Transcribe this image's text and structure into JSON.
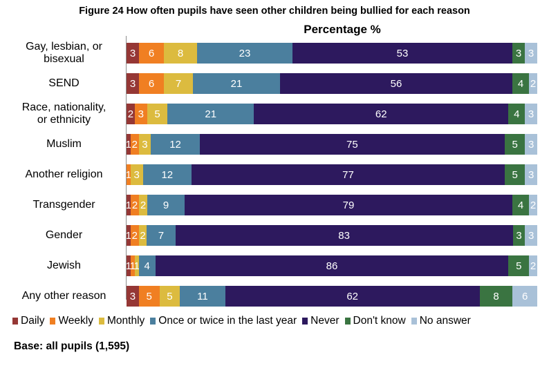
{
  "title": "Figure 24 How often pupils have seen other children being bullied for each reason",
  "subtitle": "Percentage %",
  "base_note": "Base: all pupils (1,595)",
  "colors": {
    "Daily": "#953735",
    "Weekly": "#f07f22",
    "Monthly": "#dcbb3f",
    "Once or twice in the last year": "#4b7f9e",
    "Never": "#2d195e",
    "Don't know": "#3a7441",
    "No answer": "#a9c1d8"
  },
  "chart_data": {
    "type": "bar",
    "orientation": "horizontal",
    "stacked": true,
    "title": "Figure 24 How often pupils have seen other children being bullied for each reason",
    "xlabel": "Percentage %",
    "categories": [
      [
        "Gay, lesbian, or",
        "bisexual"
      ],
      [
        "SEND"
      ],
      [
        "Race, nationality,",
        "or ethnicity"
      ],
      [
        "Muslim"
      ],
      [
        "Another religion"
      ],
      [
        "Transgender"
      ],
      [
        "Gender"
      ],
      [
        "Jewish"
      ],
      [
        "Any other reason"
      ]
    ],
    "series": [
      {
        "name": "Daily",
        "values": [
          3,
          3,
          2,
          1,
          0,
          1,
          1,
          1,
          3
        ]
      },
      {
        "name": "Weekly",
        "values": [
          6,
          6,
          3,
          2,
          1,
          2,
          2,
          1,
          5
        ]
      },
      {
        "name": "Monthly",
        "values": [
          8,
          7,
          5,
          3,
          3,
          2,
          2,
          1,
          5
        ]
      },
      {
        "name": "Once or twice in the last year",
        "values": [
          23,
          21,
          21,
          12,
          12,
          9,
          7,
          4,
          11
        ]
      },
      {
        "name": "Never",
        "values": [
          53,
          56,
          62,
          75,
          77,
          79,
          83,
          86,
          62
        ]
      },
      {
        "name": "Don't know",
        "values": [
          3,
          4,
          4,
          5,
          5,
          4,
          3,
          5,
          8
        ]
      },
      {
        "name": "No answer",
        "values": [
          3,
          2,
          3,
          3,
          3,
          2,
          3,
          2,
          6
        ]
      }
    ],
    "xlim": [
      0,
      100
    ],
    "grid": false,
    "legend": "bottom"
  }
}
